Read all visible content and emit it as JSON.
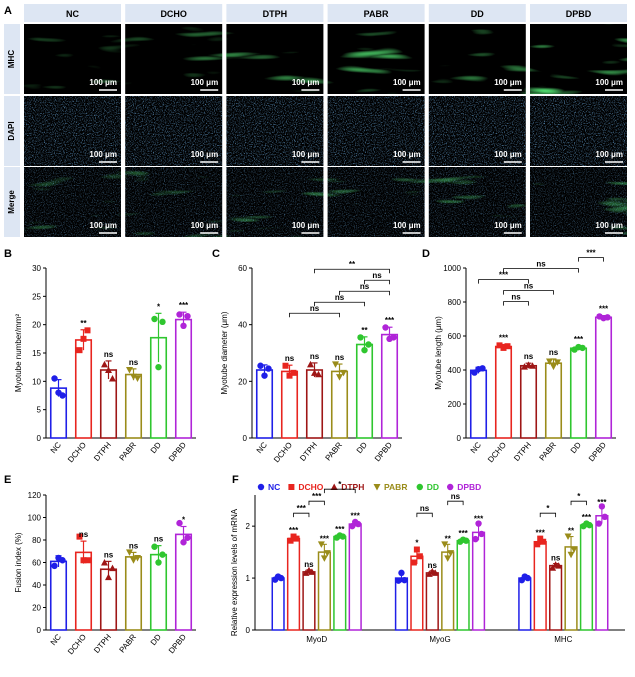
{
  "colors": {
    "NC": "#1f1fe8",
    "DCHO": "#e8251f",
    "DTPH": "#9e1616",
    "PABR": "#9a8c1a",
    "DD": "#2fc62f",
    "DPBD": "#b024d8",
    "header_bg": "#dde6f3"
  },
  "panel_a": {
    "letter": "A",
    "columns": [
      "NC",
      "DCHO",
      "DTPH",
      "PABR",
      "DD",
      "DPBD"
    ],
    "rows": [
      "MHC",
      "DAPI",
      "Merge"
    ],
    "scale_label": "100 μm"
  },
  "panels": {
    "B": "B",
    "C": "C",
    "D": "D",
    "E": "E",
    "F": "F"
  },
  "legend": [
    "NC",
    "DCHO",
    "DTPH",
    "PABR",
    "DD",
    "DPBD"
  ],
  "chart_data": [
    {
      "id": "B",
      "type": "bar",
      "categories": [
        "NC",
        "DCHO",
        "DTPH",
        "PABR",
        "DD",
        "DPBD"
      ],
      "values": [
        8.8,
        17.3,
        12.0,
        11.2,
        17.7,
        20.9
      ],
      "errors": [
        1.5,
        1.8,
        1.6,
        1.0,
        4.3,
        1.3
      ],
      "points": [
        [
          10.5,
          8.0,
          7.5
        ],
        [
          15.5,
          17.5,
          19.0
        ],
        [
          13.0,
          12.0,
          10.5
        ],
        [
          12.0,
          10.8,
          10.5
        ],
        [
          21.0,
          12.5,
          20.5
        ],
        [
          21.8,
          19.8,
          21.5
        ]
      ],
      "sig": [
        "",
        "**",
        "ns",
        "ns",
        "*",
        "***"
      ],
      "ylabel": "Myotube number/mm²",
      "ylim": [
        0,
        30
      ],
      "yticks": [
        0,
        5,
        10,
        15,
        20,
        25,
        30
      ]
    },
    {
      "id": "C",
      "type": "bar",
      "categories": [
        "NC",
        "DCHO",
        "DTPH",
        "PABR",
        "DD",
        "DPBD"
      ],
      "values": [
        24,
        23.5,
        24,
        23.5,
        33,
        36.5
      ],
      "errors": [
        1.8,
        2.2,
        2.5,
        2.6,
        2.7,
        2.6
      ],
      "points": [
        [
          25.5,
          22.0,
          24.5
        ],
        [
          25.5,
          22.0,
          23.0
        ],
        [
          26.0,
          23.0,
          22.5
        ],
        [
          26.0,
          21.5,
          23.0
        ],
        [
          35.5,
          31.0,
          33.0
        ],
        [
          39.0,
          35.0,
          35.5
        ]
      ],
      "sig": [
        "",
        "ns",
        "ns",
        "ns",
        "**",
        "***"
      ],
      "brackets": [
        {
          "from": 1,
          "to": 3,
          "label": "ns"
        },
        {
          "from": 2,
          "to": 4,
          "label": "ns"
        },
        {
          "from": 3,
          "to": 5,
          "label": "ns"
        },
        {
          "from": 4,
          "to": 5,
          "label": "ns"
        },
        {
          "from": 2,
          "to": 5,
          "label": "**"
        }
      ],
      "ylabel": "Myotube diameter (μm)",
      "ylim": [
        0,
        60
      ],
      "yticks": [
        0,
        20,
        40,
        60
      ]
    },
    {
      "id": "D",
      "type": "bar",
      "categories": [
        "NC",
        "DCHO",
        "DTPH",
        "PABR",
        "DD",
        "DPBD"
      ],
      "values": [
        398,
        538,
        425,
        440,
        528,
        710
      ],
      "errors": [
        18,
        12,
        15,
        25,
        12,
        10
      ],
      "points": [
        [
          385,
          405,
          410
        ],
        [
          545,
          530,
          540
        ],
        [
          420,
          430,
          425
        ],
        [
          450,
          420,
          445
        ],
        [
          520,
          535,
          530
        ],
        [
          715,
          705,
          710
        ]
      ],
      "sig": [
        "",
        "***",
        "ns",
        "ns",
        "***",
        "***"
      ],
      "brackets": [
        {
          "from": 1,
          "to": 2,
          "label": "ns"
        },
        {
          "from": 1,
          "to": 3,
          "label": "ns"
        },
        {
          "from": 0,
          "to": 2,
          "label": "***"
        },
        {
          "from": 1,
          "to": 4,
          "label": "ns"
        },
        {
          "from": 4,
          "to": 5,
          "label": "***"
        }
      ],
      "ylabel": "Myotube length (μm)",
      "ylim": [
        0,
        1000
      ],
      "yticks": [
        0,
        200,
        400,
        600,
        800,
        1000
      ]
    },
    {
      "id": "E",
      "type": "bar",
      "categories": [
        "NC",
        "DCHO",
        "DTPH",
        "PABR",
        "DD",
        "DPBD"
      ],
      "values": [
        61,
        69,
        54,
        65,
        67,
        85
      ],
      "errors": [
        5,
        10,
        7,
        4,
        8,
        7
      ],
      "points": [
        [
          57,
          64,
          62
        ],
        [
          83,
          62,
          62
        ],
        [
          60,
          47,
          55
        ],
        [
          69,
          62,
          64
        ],
        [
          74,
          60,
          67
        ],
        [
          95,
          78,
          82
        ]
      ],
      "sig": [
        "",
        "ns",
        "ns",
        "ns",
        "ns",
        "*"
      ],
      "ylabel": "Fusion index (%)",
      "ylim": [
        0,
        120
      ],
      "yticks": [
        0,
        20,
        40,
        60,
        80,
        100,
        120
      ]
    },
    {
      "id": "F",
      "type": "bar",
      "categories": [
        "MyoD",
        "MyoG",
        "MHC"
      ],
      "series": [
        {
          "name": "NC",
          "values": [
            1.0,
            1.0,
            1.0
          ],
          "errors": [
            0.04,
            0.08,
            0.04
          ],
          "points": [
            [
              0.97,
              1.03,
              1.0
            ],
            [
              0.95,
              1.1,
              0.96
            ],
            [
              0.96,
              1.03,
              1.0
            ]
          ],
          "sig": [
            "",
            "",
            ""
          ]
        },
        {
          "name": "DCHO",
          "values": [
            1.76,
            1.42,
            1.7
          ],
          "errors": [
            0.05,
            0.15,
            0.06
          ],
          "points": [
            [
              1.72,
              1.8,
              1.76
            ],
            [
              1.3,
              1.55,
              1.42
            ],
            [
              1.65,
              1.76,
              1.7
            ]
          ],
          "sig": [
            "***",
            "*",
            "***"
          ]
        },
        {
          "name": "DTPH",
          "values": [
            1.12,
            1.1,
            1.24
          ],
          "errors": [
            0.04,
            0.04,
            0.04
          ],
          "points": [
            [
              1.1,
              1.15,
              1.12
            ],
            [
              1.08,
              1.13,
              1.1
            ],
            [
              1.2,
              1.26,
              1.24
            ]
          ],
          "sig": [
            "ns",
            "ns",
            "ns"
          ]
        },
        {
          "name": "PABR",
          "values": [
            1.5,
            1.5,
            1.6
          ],
          "errors": [
            0.15,
            0.15,
            0.2
          ],
          "points": [
            [
              1.65,
              1.38,
              1.48
            ],
            [
              1.65,
              1.38,
              1.48
            ],
            [
              1.8,
              1.45,
              1.55
            ]
          ],
          "sig": [
            "***",
            "**",
            "**"
          ]
        },
        {
          "name": "DD",
          "values": [
            1.8,
            1.72,
            2.02
          ],
          "errors": [
            0.03,
            0.03,
            0.04
          ],
          "points": [
            [
              1.78,
              1.82,
              1.8
            ],
            [
              1.7,
              1.74,
              1.72
            ],
            [
              2.0,
              2.05,
              2.02
            ]
          ],
          "sig": [
            "***",
            "***",
            "***"
          ]
        },
        {
          "name": "DPBD",
          "values": [
            2.04,
            1.88,
            2.2
          ],
          "errors": [
            0.05,
            0.15,
            0.15
          ],
          "points": [
            [
              2.0,
              2.08,
              2.04
            ],
            [
              1.75,
              2.05,
              1.85
            ],
            [
              2.05,
              2.38,
              2.18
            ]
          ],
          "sig": [
            "***",
            "***",
            "***"
          ]
        }
      ],
      "brackets": [
        {
          "group": 0,
          "from": 1,
          "to": 2,
          "label": "***"
        },
        {
          "group": 0,
          "from": 2,
          "to": 3,
          "label": "***"
        },
        {
          "group": 0,
          "from": 3,
          "to": 5,
          "label": "*"
        },
        {
          "group": 1,
          "from": 1,
          "to": 2,
          "label": "ns"
        },
        {
          "group": 1,
          "from": 3,
          "to": 4,
          "label": "ns"
        },
        {
          "group": 2,
          "from": 1,
          "to": 2,
          "label": "*"
        },
        {
          "group": 2,
          "from": 3,
          "to": 4,
          "label": "*"
        }
      ],
      "ylabel": "Relative expression levels of mRNA",
      "ylim": [
        0,
        2.6
      ],
      "yticks": [
        0,
        1,
        2
      ]
    }
  ]
}
